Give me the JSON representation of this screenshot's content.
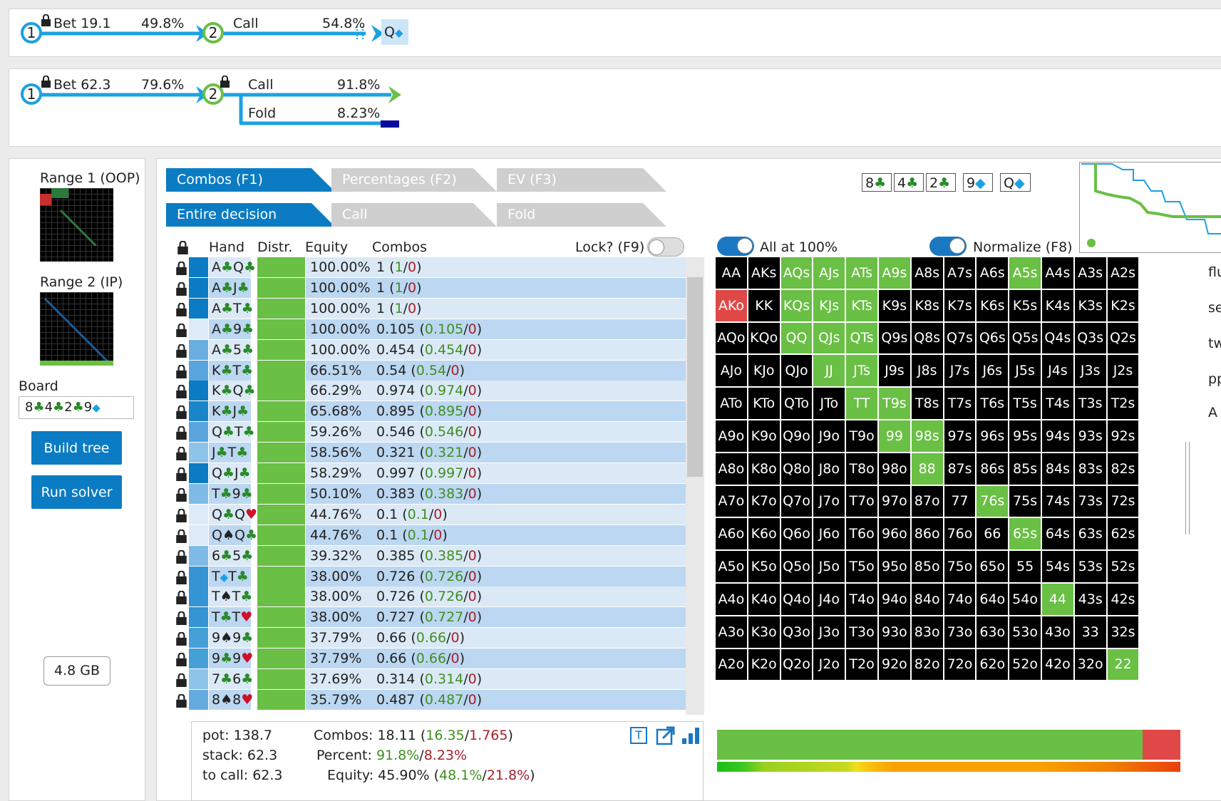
{
  "lines": [
    {
      "n1": "1",
      "a1": "Bet 19.1",
      "p1": "49.8%",
      "n2": "2",
      "a2": "Call",
      "p2": "54.8%",
      "card": "Q"
    },
    {
      "n1": "1",
      "a1": "Bet 62.3",
      "p1": "79.6%",
      "n2": "2",
      "a2a": "Call",
      "p2a": "91.8%",
      "a2b": "Fold",
      "p2b": "8.23%"
    }
  ],
  "left": {
    "range1": "Range 1 (OOP)",
    "range2": "Range 2 (IP)",
    "board_label": "Board",
    "board_value": "8♣4♣2♣9◆",
    "build": "Build tree",
    "run": "Run solver",
    "memory": "4.8 GB"
  },
  "tabs1": [
    "Combos (F1)",
    "Percentages (F2)",
    "EV (F3)"
  ],
  "tabs2": [
    "Entire decision",
    "Call",
    "Fold"
  ],
  "cards": [
    {
      "r": "8",
      "s": "♣",
      "c": "#2a8a2a"
    },
    {
      "r": "4",
      "s": "♣",
      "c": "#2a8a2a"
    },
    {
      "r": "2",
      "s": "♣",
      "c": "#2a8a2a"
    },
    {
      "r": "9",
      "s": "◆",
      "c": "#1ba1e2"
    },
    {
      "r": "Q",
      "s": "◆",
      "c": "#1ba1e2"
    }
  ],
  "table": {
    "headers": {
      "hand": "Hand",
      "distr": "Distr.",
      "equity": "Equity",
      "combos": "Combos",
      "lock": "Lock? (F9)"
    },
    "rows": [
      {
        "h": "A♣Q♣",
        "e": "100.00%",
        "c": "1",
        "g": "1",
        "r": "0",
        "sq": "#0b7cc3"
      },
      {
        "h": "A♣J♣",
        "e": "100.00%",
        "c": "1",
        "g": "1",
        "r": "0",
        "sq": "#0b7cc3"
      },
      {
        "h": "A♣T♣",
        "e": "100.00%",
        "c": "1",
        "g": "1",
        "r": "0",
        "sq": "#0b7cc3"
      },
      {
        "h": "A♣9♣",
        "e": "100.00%",
        "c": "0.105",
        "g": "0.105",
        "r": "0",
        "sq": "#dcebf7"
      },
      {
        "h": "A♣5♣",
        "e": "100.00%",
        "c": "0.454",
        "g": "0.454",
        "r": "0",
        "sq": "#6aaee0"
      },
      {
        "h": "K♣T♣",
        "e": "66.51%",
        "c": "0.54",
        "g": "0.54",
        "r": "0",
        "sq": "#5aa5dd"
      },
      {
        "h": "K♣Q♣",
        "e": "66.29%",
        "c": "0.974",
        "g": "0.974",
        "r": "0",
        "sq": "#0b7cc3"
      },
      {
        "h": "K♣J♣",
        "e": "65.68%",
        "c": "0.895",
        "g": "0.895",
        "r": "0",
        "sq": "#1a85c8"
      },
      {
        "h": "Q♣T♣",
        "e": "59.26%",
        "c": "0.546",
        "g": "0.546",
        "r": "0",
        "sq": "#5aa5dd"
      },
      {
        "h": "J♣T♣",
        "e": "58.56%",
        "c": "0.321",
        "g": "0.321",
        "r": "0",
        "sq": "#8ec3ea"
      },
      {
        "h": "Q♣J♣",
        "e": "58.29%",
        "c": "0.997",
        "g": "0.997",
        "r": "0",
        "sq": "#0b7cc3"
      },
      {
        "h": "T♣9♣",
        "e": "50.10%",
        "c": "0.383",
        "g": "0.383",
        "r": "0",
        "sq": "#80bbe7"
      },
      {
        "h": "Q♣Q♥",
        "e": "44.76%",
        "c": "0.1",
        "g": "0.1",
        "r": "0",
        "sq": "#dcebf7"
      },
      {
        "h": "Q♠Q♣",
        "e": "44.76%",
        "c": "0.1",
        "g": "0.1",
        "r": "0",
        "sq": "#dcebf7"
      },
      {
        "h": "6♣5♣",
        "e": "39.32%",
        "c": "0.385",
        "g": "0.385",
        "r": "0",
        "sq": "#80bbe7"
      },
      {
        "h": "T◆T♣",
        "e": "38.00%",
        "c": "0.726",
        "g": "0.726",
        "r": "0",
        "sq": "#3594d3"
      },
      {
        "h": "T♠T♣",
        "e": "38.00%",
        "c": "0.726",
        "g": "0.726",
        "r": "0",
        "sq": "#3594d3"
      },
      {
        "h": "T♣T♥",
        "e": "38.00%",
        "c": "0.727",
        "g": "0.727",
        "r": "0",
        "sq": "#3594d3"
      },
      {
        "h": "9♠9♣",
        "e": "37.79%",
        "c": "0.66",
        "g": "0.66",
        "r": "0",
        "sq": "#45a0d8"
      },
      {
        "h": "9♣9♥",
        "e": "37.79%",
        "c": "0.66",
        "g": "0.66",
        "r": "0",
        "sq": "#45a0d8"
      },
      {
        "h": "7♣6♣",
        "e": "37.69%",
        "c": "0.314",
        "g": "0.314",
        "r": "0",
        "sq": "#8ec3ea"
      },
      {
        "h": "8♠8♥",
        "e": "35.79%",
        "c": "0.487",
        "g": "0.487",
        "r": "0",
        "sq": "#66abe0"
      }
    ]
  },
  "toggles": {
    "all100": "All at 100%",
    "normalize": "Normalize (F8)"
  },
  "summary": {
    "pot": "pot: 138.7",
    "stack": "stack: 62.3",
    "tocall": "to call: 62.3",
    "combos_l": "Combos: 18.11 (",
    "combos_g": "16.35",
    "combos_r": "1.765",
    "pct_l": "Percent: ",
    "pct_g": "91.8%",
    "pct_r": "8.23%",
    "eq_l": "Equity: 45.90% (",
    "eq_g": "48.1%",
    "eq_r": "21.8%"
  },
  "right_cut": [
    "flu",
    "se",
    "tw",
    "pp",
    "A"
  ],
  "matrix": {
    "cells": [
      [
        "AA",
        "AKs",
        "AQs",
        "AJs",
        "ATs",
        "A9s",
        "A8s",
        "A7s",
        "A6s",
        "A5s",
        "A4s",
        "A3s",
        "A2s"
      ],
      [
        "AKo",
        "KK",
        "KQs",
        "KJs",
        "KTs",
        "K9s",
        "K8s",
        "K7s",
        "K6s",
        "K5s",
        "K4s",
        "K3s",
        "K2s"
      ],
      [
        "AQo",
        "KQo",
        "QQ",
        "QJs",
        "QTs",
        "Q9s",
        "Q8s",
        "Q7s",
        "Q6s",
        "Q5s",
        "Q4s",
        "Q3s",
        "Q2s"
      ],
      [
        "AJo",
        "KJo",
        "QJo",
        "JJ",
        "JTs",
        "J9s",
        "J8s",
        "J7s",
        "J6s",
        "J5s",
        "J4s",
        "J3s",
        "J2s"
      ],
      [
        "ATo",
        "KTo",
        "QTo",
        "JTo",
        "TT",
        "T9s",
        "T8s",
        "T7s",
        "T6s",
        "T5s",
        "T4s",
        "T3s",
        "T2s"
      ],
      [
        "A9o",
        "K9o",
        "Q9o",
        "J9o",
        "T9o",
        "99",
        "98s",
        "97s",
        "96s",
        "95s",
        "94s",
        "93s",
        "92s"
      ],
      [
        "A8o",
        "K8o",
        "Q8o",
        "J8o",
        "T8o",
        "98o",
        "88",
        "87s",
        "86s",
        "85s",
        "84s",
        "83s",
        "82s"
      ],
      [
        "A7o",
        "K7o",
        "Q7o",
        "J7o",
        "T7o",
        "97o",
        "87o",
        "77",
        "76s",
        "75s",
        "74s",
        "73s",
        "72s"
      ],
      [
        "A6o",
        "K6o",
        "Q6o",
        "J6o",
        "T6o",
        "96o",
        "86o",
        "76o",
        "66",
        "65s",
        "64s",
        "63s",
        "62s"
      ],
      [
        "A5o",
        "K5o",
        "Q5o",
        "J5o",
        "T5o",
        "95o",
        "85o",
        "75o",
        "65o",
        "55",
        "54s",
        "53s",
        "52s"
      ],
      [
        "A4o",
        "K4o",
        "Q4o",
        "J4o",
        "T4o",
        "94o",
        "84o",
        "74o",
        "64o",
        "54o",
        "44",
        "43s",
        "42s"
      ],
      [
        "A3o",
        "K3o",
        "Q3o",
        "J3o",
        "T3o",
        "93o",
        "83o",
        "73o",
        "63o",
        "53o",
        "43o",
        "33",
        "32s"
      ],
      [
        "A2o",
        "K2o",
        "Q2o",
        "J2o",
        "T2o",
        "92o",
        "82o",
        "72o",
        "62o",
        "52o",
        "42o",
        "32o",
        "22"
      ]
    ],
    "green": [
      "AQs",
      "AJs",
      "ATs",
      "A9s",
      "A5s",
      "KQs",
      "KJs",
      "KTs",
      "QQ",
      "QJs",
      "QTs",
      "JJ",
      "JTs",
      "TT",
      "T9s",
      "99",
      "98s",
      "88",
      "76s",
      "65s",
      "44",
      "22"
    ],
    "red": [
      "AKo"
    ],
    "green_color": "#6abf45",
    "red_color": "#e04848",
    "black_color": "#000000"
  },
  "strategy_bar": {
    "call": 0.918,
    "fold": 0.082,
    "call_color": "#6abf45",
    "fold_color": "#e04848"
  }
}
